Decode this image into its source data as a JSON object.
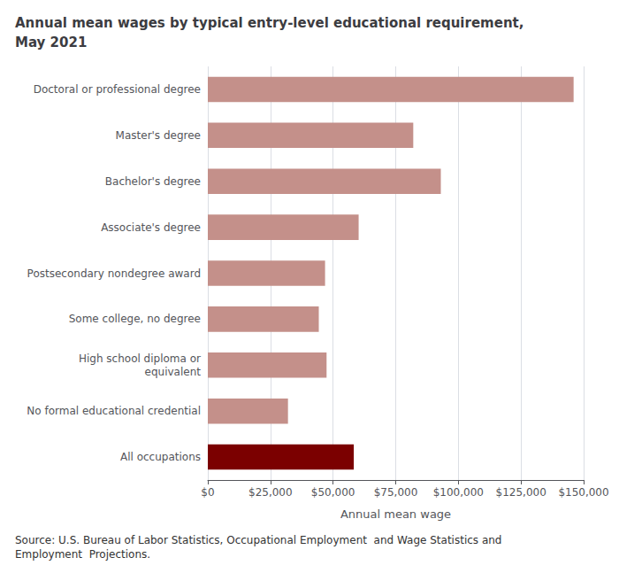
{
  "chart_data": {
    "type": "bar",
    "orientation": "horizontal",
    "title": "Annual mean wages by typical entry-level educational requirement,\nMay 2021",
    "categories": [
      "All occupations",
      "No formal educational credential",
      "High school diploma or\nequivalent",
      "Some college, no degree",
      "Postsecondary nondegree award",
      "Associate's degree",
      "Bachelor's degree",
      "Master's degree",
      "Doctoral or professional degree"
    ],
    "values": [
      58260,
      32000,
      47400,
      44300,
      46800,
      60200,
      93000,
      82000,
      146000
    ],
    "colors": [
      "#7B0000",
      "#C4908A",
      "#C4908A",
      "#C4908A",
      "#C4908A",
      "#C4908A",
      "#C4908A",
      "#C4908A",
      "#C4908A"
    ],
    "xlabel": "Annual mean wage",
    "xlim": [
      0,
      150000
    ],
    "xticks": [
      {
        "value": 0,
        "label": "$0"
      },
      {
        "value": 25000,
        "label": "$25,000"
      },
      {
        "value": 50000,
        "label": "$50,000"
      },
      {
        "value": 75000,
        "label": "$75,000"
      },
      {
        "value": 100000,
        "label": "$100,000"
      },
      {
        "value": 125000,
        "label": "$125,000"
      },
      {
        "value": 150000,
        "label": "$150,000"
      }
    ],
    "grid": true,
    "annotations": [
      "Source: U.S. Bureau of Labor Statistics, Occupational Employment  and Wage Statistics and\nEmployment  Projections."
    ]
  }
}
